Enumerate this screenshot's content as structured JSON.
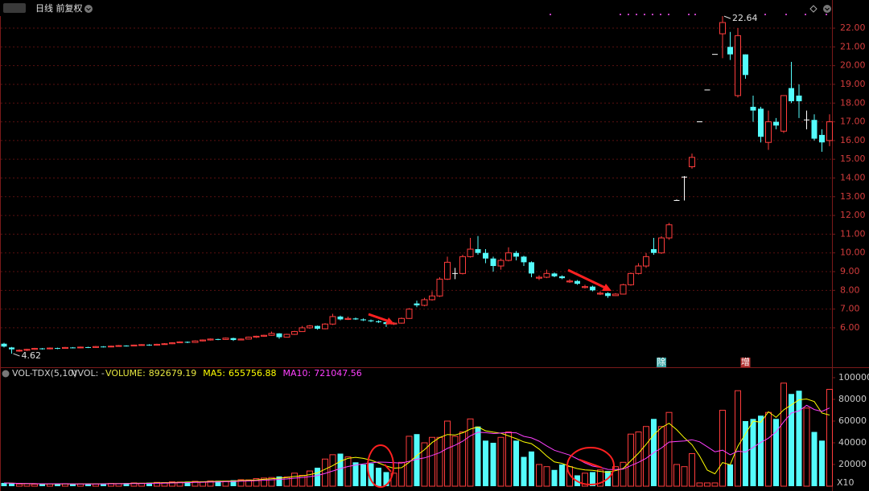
{
  "chart_data": [
    {
      "type": "candlestick",
      "title": "日线 前复权",
      "colors": {
        "up": "#ff3c3c",
        "down": "#54fcfc",
        "flat": "#ffffff"
      },
      "ylim": [
        3.98,
        22.86
      ],
      "yticks": [
        {
          "value": 6,
          "label": "6.00"
        },
        {
          "value": 7,
          "label": "7.00"
        },
        {
          "value": 8,
          "label": "8.00"
        },
        {
          "value": 9,
          "label": "9.00"
        },
        {
          "value": 10,
          "label": "10.00"
        },
        {
          "value": 11,
          "label": "11.00"
        },
        {
          "value": 12,
          "label": "12.00"
        },
        {
          "value": 13,
          "label": "13.00"
        },
        {
          "value": 14,
          "label": "14.00"
        },
        {
          "value": 15,
          "label": "15.00"
        },
        {
          "value": 16,
          "label": "16.00"
        },
        {
          "value": 17,
          "label": "17.00"
        },
        {
          "value": 18,
          "label": "18.00"
        },
        {
          "value": 19,
          "label": "19.00"
        },
        {
          "value": 20,
          "label": "20.00"
        },
        {
          "value": 21,
          "label": "21.00"
        },
        {
          "value": 22,
          "label": "22.00"
        }
      ],
      "grid": true,
      "ohlc": [
        [
          5.15,
          5.2,
          4.95,
          5.0
        ],
        [
          4.95,
          4.98,
          4.62,
          4.85
        ],
        [
          4.78,
          4.85,
          4.72,
          4.8
        ],
        [
          4.8,
          4.88,
          4.76,
          4.85
        ],
        [
          4.85,
          4.93,
          4.82,
          4.9
        ],
        [
          4.9,
          4.92,
          4.84,
          4.88
        ],
        [
          4.88,
          4.95,
          4.85,
          4.92
        ],
        [
          4.92,
          4.94,
          4.86,
          4.9
        ],
        [
          4.9,
          4.98,
          4.88,
          4.95
        ],
        [
          4.95,
          4.97,
          4.9,
          4.93
        ],
        [
          4.93,
          5.0,
          4.9,
          4.97
        ],
        [
          4.97,
          4.99,
          4.92,
          4.95
        ],
        [
          4.95,
          5.03,
          4.93,
          5.0
        ],
        [
          5.0,
          5.02,
          4.95,
          4.98
        ],
        [
          4.98,
          5.05,
          4.96,
          5.02
        ],
        [
          5.02,
          5.08,
          5.0,
          5.05
        ],
        [
          5.05,
          5.07,
          5.0,
          5.03
        ],
        [
          5.03,
          5.1,
          5.01,
          5.08
        ],
        [
          5.08,
          5.13,
          5.05,
          5.1
        ],
        [
          5.1,
          5.12,
          5.04,
          5.07
        ],
        [
          5.07,
          5.15,
          5.05,
          5.12
        ],
        [
          5.12,
          5.18,
          5.1,
          5.15
        ],
        [
          5.15,
          5.23,
          5.13,
          5.2
        ],
        [
          5.2,
          5.28,
          5.18,
          5.25
        ],
        [
          5.25,
          5.27,
          5.18,
          5.22
        ],
        [
          5.22,
          5.33,
          5.2,
          5.3
        ],
        [
          5.3,
          5.38,
          5.27,
          5.35
        ],
        [
          5.35,
          5.43,
          5.32,
          5.4
        ],
        [
          5.4,
          5.42,
          5.34,
          5.38
        ],
        [
          5.38,
          5.48,
          5.36,
          5.45
        ],
        [
          5.45,
          5.47,
          5.3,
          5.35
        ],
        [
          5.35,
          5.43,
          5.33,
          5.4
        ],
        [
          5.4,
          5.53,
          5.38,
          5.5
        ],
        [
          5.5,
          5.58,
          5.46,
          5.55
        ],
        [
          5.55,
          5.63,
          5.52,
          5.6
        ],
        [
          5.6,
          5.8,
          5.58,
          5.7
        ],
        [
          5.7,
          5.72,
          5.42,
          5.5
        ],
        [
          5.5,
          5.68,
          5.48,
          5.65
        ],
        [
          5.65,
          5.84,
          5.62,
          5.8
        ],
        [
          5.8,
          6.1,
          5.78,
          6.0
        ],
        [
          6.0,
          6.15,
          5.95,
          6.1
        ],
        [
          6.1,
          6.12,
          5.9,
          5.95
        ],
        [
          5.95,
          6.25,
          5.92,
          6.2
        ],
        [
          6.2,
          6.75,
          6.15,
          6.6
        ],
        [
          6.6,
          6.65,
          6.4,
          6.45
        ],
        [
          6.45,
          6.6,
          6.42,
          6.5
        ],
        [
          6.5,
          6.55,
          6.42,
          6.45
        ],
        [
          6.45,
          6.5,
          6.36,
          6.4
        ],
        [
          6.4,
          6.44,
          6.3,
          6.35
        ],
        [
          6.35,
          6.4,
          6.26,
          6.3
        ],
        [
          6.3,
          6.32,
          6.05,
          6.2
        ],
        [
          6.2,
          6.3,
          6.15,
          6.25
        ],
        [
          6.25,
          6.55,
          6.22,
          6.5
        ],
        [
          6.5,
          7.05,
          6.48,
          7.0
        ],
        [
          7.3,
          7.45,
          7.1,
          7.2
        ],
        [
          7.2,
          7.6,
          7.15,
          7.5
        ],
        [
          7.5,
          7.95,
          7.45,
          7.7
        ],
        [
          7.7,
          8.7,
          7.65,
          8.6
        ],
        [
          8.6,
          9.8,
          8.55,
          9.5
        ],
        [
          8.9,
          9.2,
          8.6,
          8.9
        ],
        [
          8.9,
          9.9,
          8.85,
          9.8
        ],
        [
          9.8,
          10.8,
          9.75,
          10.2
        ],
        [
          10.2,
          10.9,
          9.9,
          10.0
        ],
        [
          10.0,
          10.2,
          9.45,
          9.7
        ],
        [
          9.7,
          9.8,
          9.0,
          9.3
        ],
        [
          9.3,
          9.7,
          9.1,
          9.6
        ],
        [
          9.6,
          10.3,
          9.55,
          10.0
        ],
        [
          10.0,
          10.1,
          9.6,
          9.8
        ],
        [
          9.8,
          9.85,
          9.3,
          9.5
        ],
        [
          9.5,
          9.55,
          8.7,
          8.9
        ],
        [
          8.65,
          8.8,
          8.55,
          8.7
        ],
        [
          8.7,
          9.1,
          8.65,
          8.9
        ],
        [
          8.9,
          8.95,
          8.7,
          8.75
        ],
        [
          8.75,
          8.8,
          8.6,
          8.65
        ],
        [
          8.45,
          8.6,
          8.4,
          8.5
        ],
        [
          8.5,
          8.55,
          8.3,
          8.35
        ],
        [
          8.15,
          8.3,
          8.1,
          8.2
        ],
        [
          8.2,
          8.25,
          7.95,
          8.0
        ],
        [
          7.8,
          7.95,
          7.75,
          7.85
        ],
        [
          7.85,
          7.9,
          7.6,
          7.7
        ],
        [
          7.72,
          7.85,
          7.7,
          7.8
        ],
        [
          7.8,
          8.35,
          7.78,
          8.3
        ],
        [
          8.3,
          8.95,
          8.25,
          8.9
        ],
        [
          8.9,
          9.45,
          8.85,
          9.3
        ],
        [
          9.3,
          10.0,
          9.2,
          9.8
        ],
        [
          10.2,
          10.8,
          9.9,
          10.0
        ],
        [
          10.0,
          10.9,
          9.95,
          10.8
        ],
        [
          10.8,
          11.6,
          10.7,
          11.5
        ],
        [
          12.8,
          12.85,
          12.8,
          12.8
        ],
        [
          14.05,
          14.1,
          12.8,
          14.05
        ],
        [
          14.6,
          15.3,
          14.5,
          15.1
        ],
        [
          17.0,
          17.0,
          17.0,
          17.0
        ],
        [
          18.7,
          18.7,
          18.7,
          18.7
        ],
        [
          20.6,
          20.6,
          20.6,
          20.6
        ],
        [
          21.7,
          22.64,
          20.4,
          22.3
        ],
        [
          21.0,
          21.8,
          20.3,
          20.6
        ],
        [
          18.4,
          22.0,
          18.3,
          21.6
        ],
        [
          20.6,
          20.6,
          19.3,
          19.5
        ],
        [
          17.8,
          18.4,
          17.0,
          17.6
        ],
        [
          17.7,
          17.8,
          15.9,
          16.2
        ],
        [
          15.9,
          17.6,
          15.5,
          17.0
        ],
        [
          17.0,
          17.2,
          16.6,
          16.8
        ],
        [
          16.5,
          18.4,
          16.4,
          18.4
        ],
        [
          18.8,
          20.2,
          18.0,
          18.1
        ],
        [
          18.4,
          19.0,
          17.2,
          18.1
        ],
        [
          17.1,
          17.6,
          16.6,
          17.1
        ],
        [
          17.1,
          17.4,
          16.0,
          16.1
        ],
        [
          16.3,
          16.6,
          15.4,
          15.9
        ],
        [
          16.0,
          17.4,
          15.7,
          17.0
        ]
      ],
      "annotations": [
        {
          "text": "22.64",
          "index": 94,
          "value": 22.64
        },
        {
          "text": "4.62",
          "index": 1,
          "value": 4.62
        }
      ],
      "events": [
        {
          "label": "除",
          "index": 86
        },
        {
          "label": "增",
          "index": 97
        }
      ]
    },
    {
      "type": "volume",
      "title": "VOL-TDX(5,10)",
      "subtitle": "VVOL: -",
      "unit_label": "X10",
      "ylim": [
        0,
        100000
      ],
      "yticks": [
        20000,
        40000,
        60000,
        80000,
        100000
      ],
      "series": [
        {
          "name": "VOLUME:",
          "color": "#e6e640",
          "last_label": "892679.19",
          "values": [
            3000,
            2500,
            2000,
            2200,
            1800,
            2000,
            2100,
            1900,
            2300,
            2000,
            2200,
            2400,
            2000,
            2600,
            2500,
            2300,
            2800,
            3000,
            2700,
            3200,
            3500,
            3300,
            4000,
            3800,
            4200,
            4500,
            4000,
            4800,
            5000,
            4600,
            5500,
            6000,
            5800,
            7000,
            7500,
            8000,
            9000,
            8500,
            12000,
            10000,
            14000,
            17000,
            25000,
            29000,
            30000,
            27000,
            22000,
            20000,
            21000,
            17000,
            13000,
            12000,
            22000,
            46000,
            48000,
            40000,
            45000,
            45000,
            60000,
            46000,
            50000,
            62000,
            55000,
            42000,
            40000,
            45000,
            50000,
            42000,
            27000,
            32000,
            20000,
            18000,
            15000,
            20000,
            18000,
            10000,
            12000,
            13000,
            15000,
            14000,
            18000,
            22000,
            48000,
            50000,
            55000,
            62000,
            55000,
            68000,
            20000,
            18000,
            30000,
            3000,
            3000,
            3000,
            70000,
            20000,
            88000,
            60000,
            62000,
            65000,
            68000,
            62000,
            95000,
            85000,
            88000,
            72000,
            50000,
            42000,
            89267.919
          ]
        },
        {
          "name": "MA5:",
          "color": "#ffff00",
          "last_label": "655756.88",
          "values": [
            3000,
            2750,
            2500,
            2425,
            2300,
            2100,
            2020,
            2000,
            2020,
            2060,
            2100,
            2160,
            2180,
            2240,
            2340,
            2360,
            2440,
            2640,
            2660,
            2800,
            3040,
            3140,
            3340,
            3560,
            3760,
            3960,
            4100,
            4260,
            4500,
            4580,
            4780,
            5180,
            5380,
            5780,
            6360,
            6860,
            7460,
            8000,
            9000,
            9500,
            10700,
            12300,
            15600,
            19000,
            23000,
            25600,
            26600,
            25600,
            24000,
            21400,
            18600,
            16600,
            17000,
            22000,
            28200,
            33600,
            40200,
            44800,
            47600,
            47200,
            49200,
            52600,
            54600,
            51000,
            49800,
            48800,
            46400,
            43800,
            40800,
            39200,
            34200,
            27800,
            22400,
            21000,
            18200,
            16200,
            15000,
            14600,
            13600,
            12800,
            14400,
            16400,
            23400,
            30400,
            38600,
            47400,
            54000,
            58000,
            52000,
            44600,
            38200,
            27800,
            14800,
            11400,
            21800,
            19800,
            36800,
            48200,
            60000,
            59000,
            68600,
            63400,
            70400,
            75000,
            79600,
            80400,
            78000,
            67400,
            65575.688
          ]
        },
        {
          "name": "MA10:",
          "color": "#ff40ff",
          "last_label": "721047.56",
          "values": [
            3000,
            2750,
            2500,
            2425,
            2300,
            2250,
            2229,
            2188,
            2200,
            2180,
            2100,
            2090,
            2090,
            2130,
            2200,
            2230,
            2300,
            2410,
            2450,
            2570,
            2700,
            2790,
            2990,
            3110,
            3280,
            3500,
            3620,
            3800,
            4030,
            4170,
            4370,
            4640,
            4820,
            5140,
            5470,
            5820,
            6320,
            6690,
            7390,
            7930,
            8780,
            9880,
            11800,
            14000,
            16250,
            18150,
            19450,
            20600,
            21500,
            22200,
            22100,
            21600,
            21300,
            23000,
            24800,
            26100,
            28400,
            30900,
            34800,
            37700,
            41400,
            46400,
            49700,
            49300,
            48500,
            49000,
            49500,
            49200,
            45900,
            44500,
            41500,
            37100,
            33100,
            30900,
            28700,
            25200,
            21400,
            18500,
            17300,
            15500,
            15300,
            15700,
            19000,
            22000,
            25700,
            30900,
            35200,
            40700,
            41200,
            41600,
            42800,
            40900,
            36400,
            31700,
            33200,
            29000,
            32300,
            31500,
            35700,
            40400,
            44200,
            50100,
            59300,
            67500,
            69300,
            74500,
            70700,
            68900,
            72104.756
          ]
        }
      ]
    }
  ]
}
